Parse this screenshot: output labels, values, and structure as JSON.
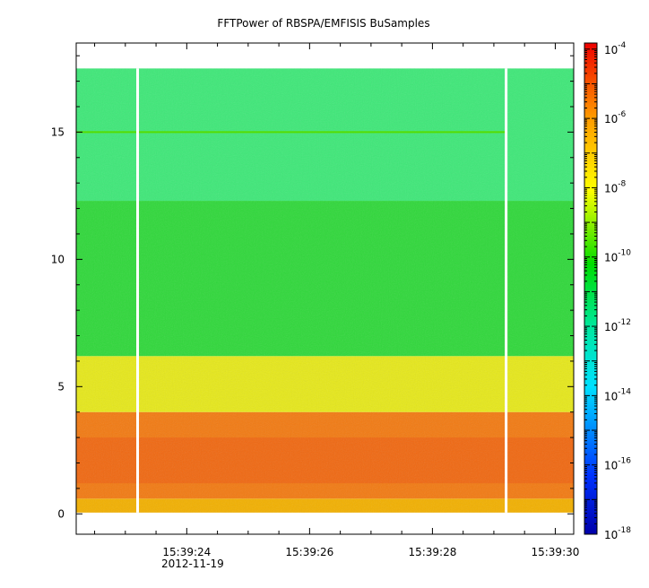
{
  "chart_data": {
    "type": "heatmap",
    "title": "FFTPower of RBSPA/EMFISIS  BuSamples",
    "xlabel": "",
    "ylabel": "",
    "x_axis": {
      "type": "time",
      "date_label": "2012-11-19",
      "range": [
        "15:39:22.2",
        "15:39:30.3"
      ],
      "ticks": [
        "15:39:24",
        "15:39:26",
        "15:39:28",
        "15:39:30"
      ],
      "minor_tick_interval_s": 0.5
    },
    "y_axis": {
      "range": [
        -0.8,
        18.5
      ],
      "ticks": [
        0,
        5,
        10,
        15
      ],
      "minor_tick_interval": 1
    },
    "colorbar": {
      "scale": "log",
      "colormap": "rainbow (blue-cyan-green-yellow-red)",
      "range": [
        "1e-18",
        "1.5e-4"
      ],
      "ticks": [
        {
          "value": "1e-18",
          "base": "10",
          "exp": "-18"
        },
        {
          "value": "1e-16",
          "base": "10",
          "exp": "-16"
        },
        {
          "value": "1e-14",
          "base": "10",
          "exp": "-14"
        },
        {
          "value": "1e-12",
          "base": "10",
          "exp": "-12"
        },
        {
          "value": "1e-10",
          "base": "10",
          "exp": "-10"
        },
        {
          "value": "1e-8",
          "base": "10",
          "exp": "-8"
        },
        {
          "value": "1e-6",
          "base": "10",
          "exp": "-6"
        },
        {
          "value": "1e-4",
          "base": "10",
          "exp": "-4"
        }
      ]
    },
    "data_extent": {
      "y_min": 0.05,
      "y_max": 17.5
    },
    "data_gaps_time": [
      "15:39:23.2",
      "15:39:29.2"
    ],
    "bands": [
      {
        "y_range": [
          0.05,
          0.6
        ],
        "level": "~1e-8 to 1e-7",
        "color": "yellow-orange"
      },
      {
        "y_range": [
          0.6,
          4.0
        ],
        "level": "~1e-7 to 1e-6",
        "color": "orange-red"
      },
      {
        "y_range": [
          4.0,
          6.2
        ],
        "level": "~1e-9 to 1e-8",
        "color": "yellow"
      },
      {
        "y_range": [
          6.2,
          12.3
        ],
        "level": "~1e-11 to 1e-10",
        "color": "green"
      },
      {
        "y_range": [
          12.3,
          17.5
        ],
        "level": "~1e-12",
        "color": "light green"
      }
    ],
    "features": [
      {
        "y": 15.0,
        "description": "narrow horizontal line, slightly higher power"
      }
    ]
  }
}
